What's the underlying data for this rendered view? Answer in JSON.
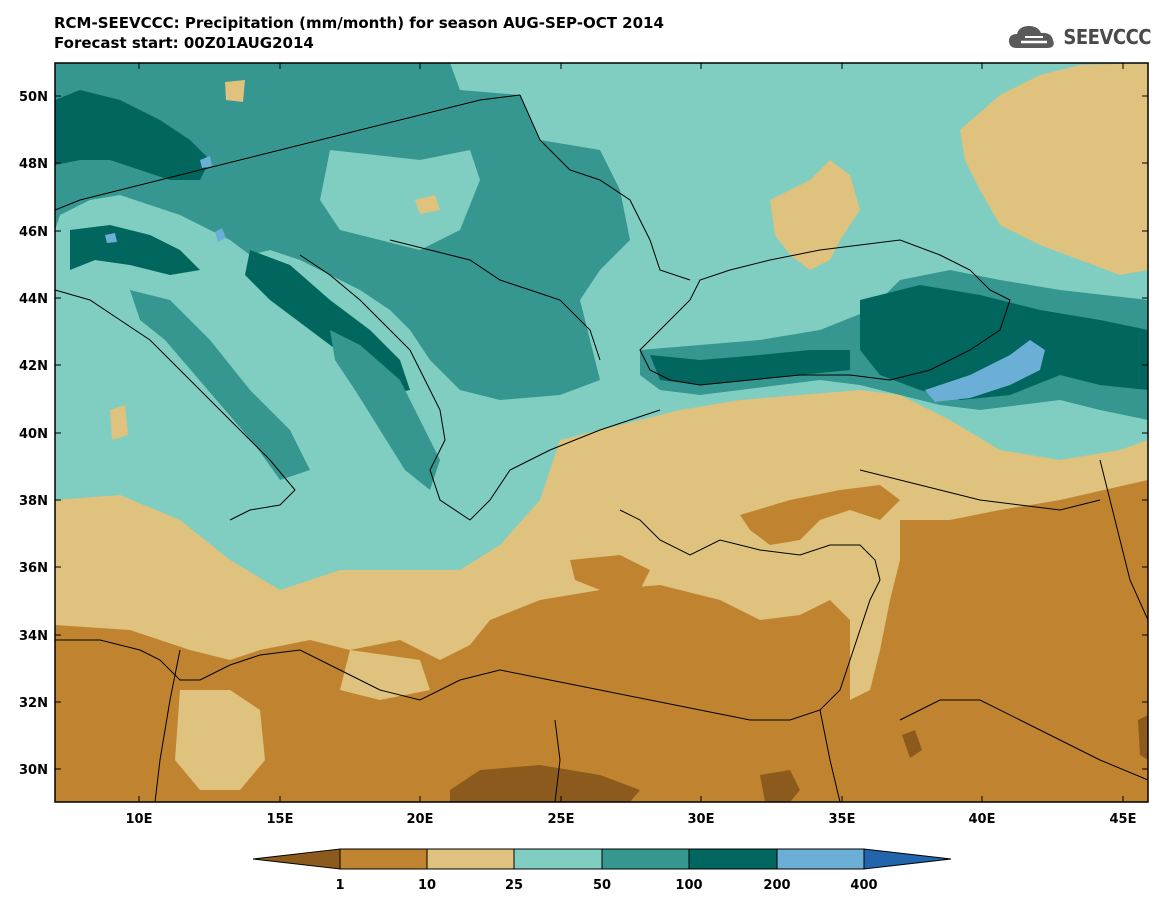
{
  "title_line1": "RCM-SEEVCCC: Precipitation (mm/month) for season AUG-SEP-OCT 2014",
  "title_line2": "Forecast start: 00Z01AUG2014",
  "logo_text": "SEEVCCC",
  "lat_ticks": [
    "50N",
    "48N",
    "46N",
    "44N",
    "42N",
    "40N",
    "38N",
    "36N",
    "34N",
    "32N",
    "30N"
  ],
  "lon_ticks": [
    "10E",
    "15E",
    "20E",
    "25E",
    "30E",
    "35E",
    "40E",
    "45E"
  ],
  "colorbar": {
    "labels": [
      "1",
      "10",
      "25",
      "50",
      "100",
      "200",
      "400"
    ],
    "colors": [
      "#8c5a1c",
      "#c08431",
      "#dfc27d",
      "#80cdc1",
      "#35978f",
      "#01665e",
      "#6baed6",
      "#2166ac"
    ]
  }
}
